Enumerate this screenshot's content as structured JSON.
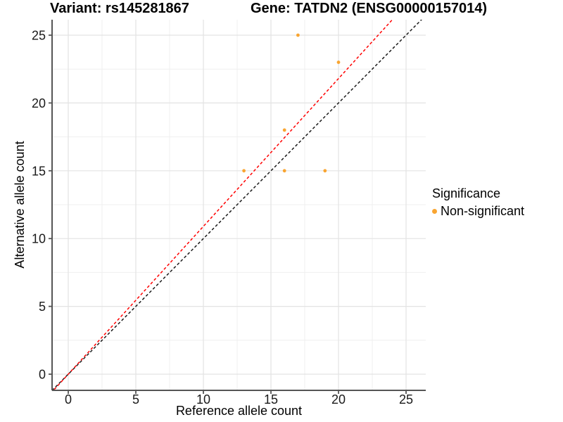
{
  "titles": {
    "variant": "Variant: rs145281867",
    "gene": "Gene: TATDN2 (ENSG00000157014)"
  },
  "chart_data": {
    "type": "scatter",
    "xlabel": "Reference allele count",
    "ylabel": "Alternative allele count",
    "x_ticks": [
      0,
      5,
      10,
      15,
      20,
      25
    ],
    "y_ticks": [
      0,
      5,
      10,
      15,
      20,
      25
    ],
    "x_minor_ticks": [
      2.5,
      7.5,
      12.5,
      17.5,
      22.5
    ],
    "y_minor_ticks": [
      2.5,
      7.5,
      12.5,
      17.5,
      22.5
    ],
    "xlim": [
      -1.2,
      26.5
    ],
    "ylim": [
      -1.2,
      26.2
    ],
    "grid": "major and minor light-gray gridlines on white panel",
    "series": [
      {
        "name": "Non-significant",
        "color": "#F9A531",
        "points": [
          [
            13,
            15
          ],
          [
            16,
            15
          ],
          [
            19,
            15
          ],
          [
            16,
            18
          ],
          [
            20,
            23
          ],
          [
            17,
            25
          ]
        ]
      }
    ],
    "reference_lines": [
      {
        "name": "identity-line",
        "slope": 1.0,
        "intercept": 0,
        "style": "dashed",
        "color": "#1A1A1A"
      },
      {
        "name": "fitted-line",
        "slope": 1.09,
        "intercept": 0,
        "style": "dashed",
        "color": "#FF0000"
      }
    ],
    "legend": {
      "title": "Significance",
      "position": "right",
      "entries": [
        {
          "label": "Non-significant",
          "color": "#F9A531"
        }
      ]
    }
  }
}
